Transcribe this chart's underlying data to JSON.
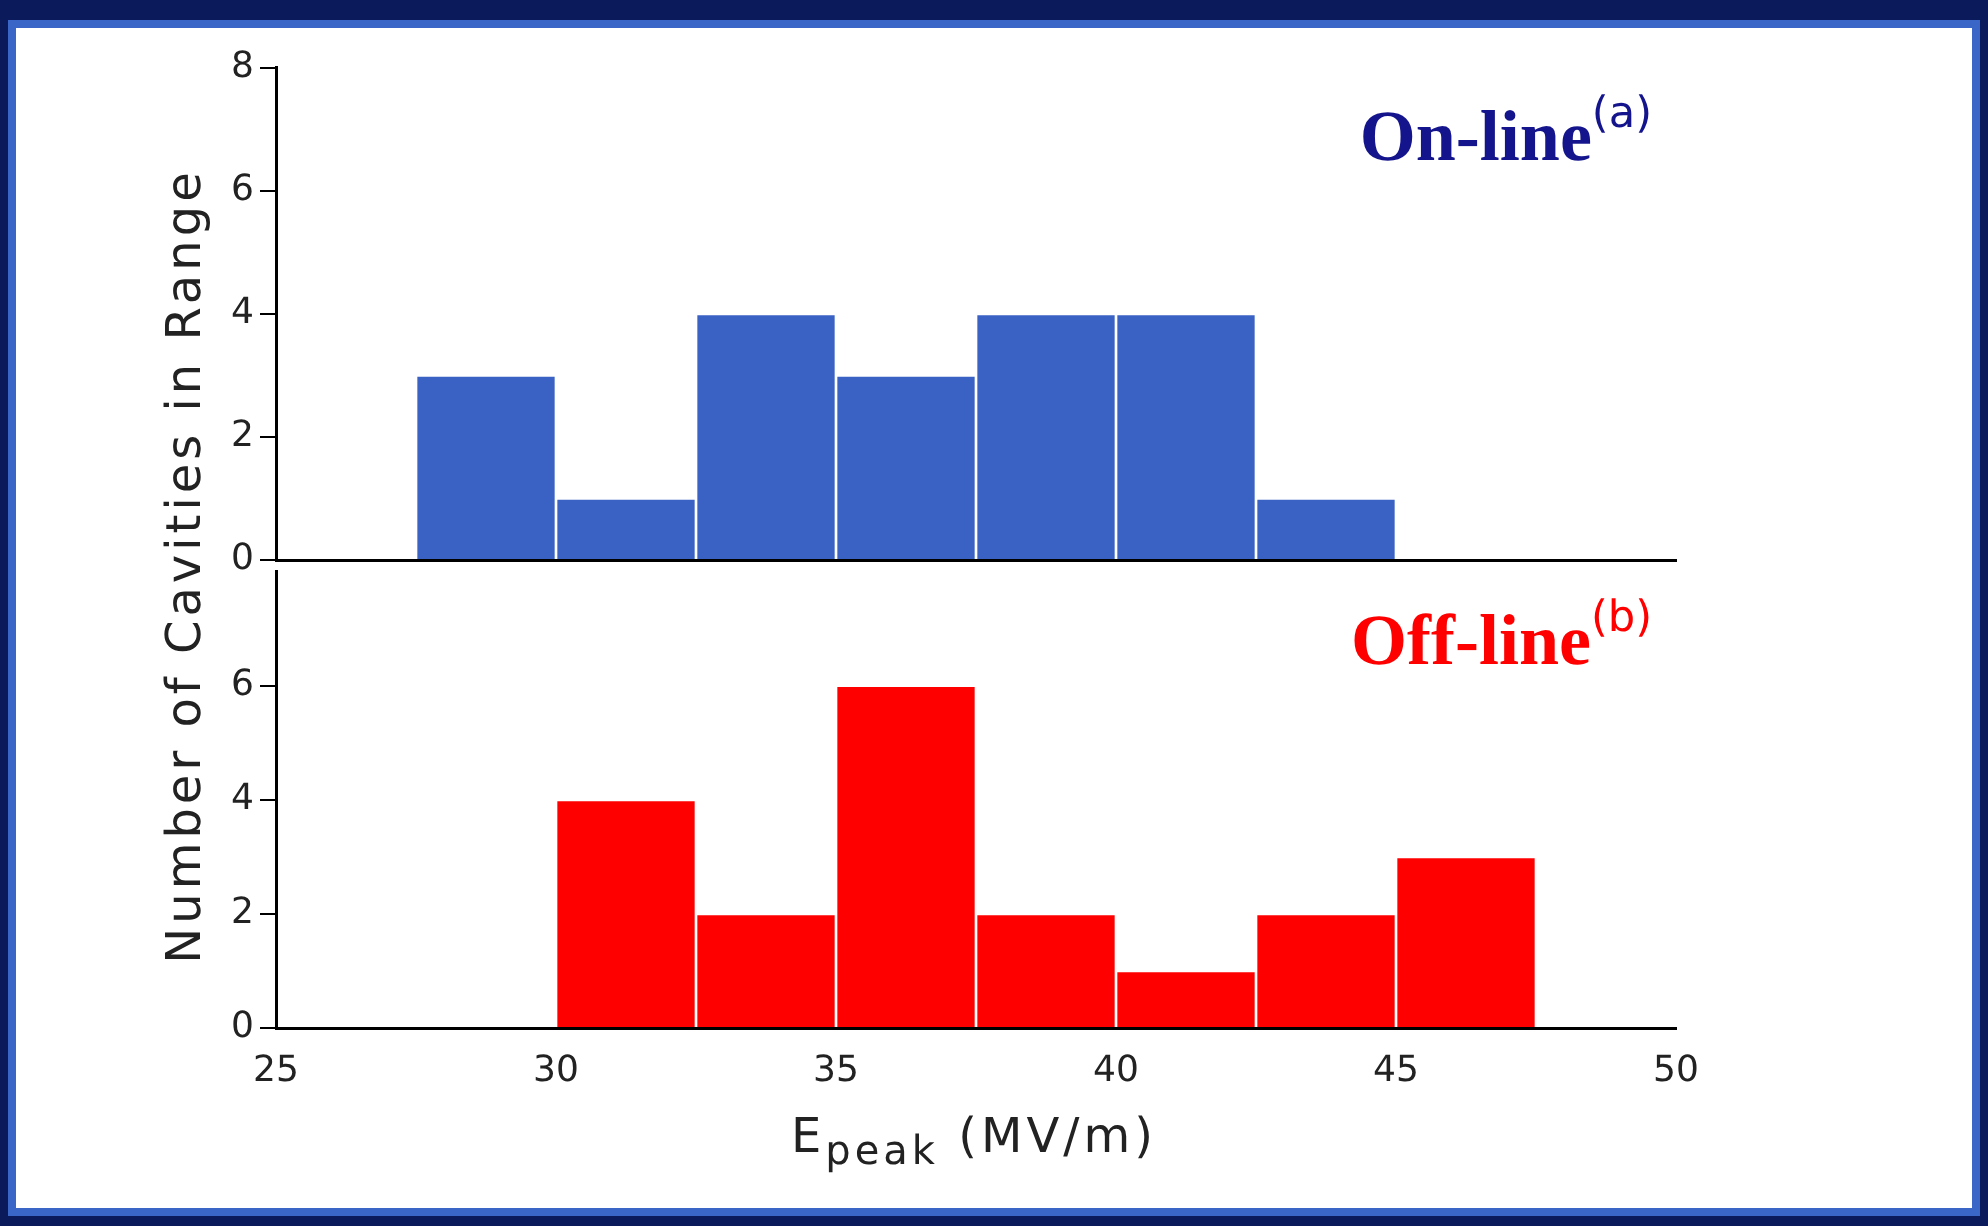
{
  "chart_data": [
    {
      "type": "histogram",
      "ylabel": "Number of Cavities in Range",
      "annotations": [
        "On-line$^{(a)}$"
      ],
      "bins": [
        27.5,
        30,
        32.5,
        35,
        37.5,
        40,
        42.5,
        45
      ],
      "values": [
        3,
        1,
        4,
        3,
        4,
        4,
        1
      ],
      "color": "#3a62c4",
      "xlim": [
        25,
        50
      ],
      "xticks": [
        25,
        30,
        35,
        40,
        45,
        50
      ],
      "ylim": [
        0,
        8
      ],
      "yticks": [
        0,
        2,
        4,
        6,
        8
      ],
      "tick_labels": "y",
      "grid": false,
      "legend": false
    },
    {
      "type": "histogram",
      "xlabel": "E$_{peak}$ (MV/m)",
      "annotations": [
        "Off-line$^{(b)}$"
      ],
      "bins": [
        30,
        32.5,
        35,
        37.5,
        40,
        42.5,
        45,
        47.5
      ],
      "values": [
        4,
        2,
        6,
        2,
        1,
        2,
        3
      ],
      "color": "#ff0000",
      "xlim": [
        25,
        50
      ],
      "xticks": [
        25,
        30,
        35,
        40,
        45,
        50
      ],
      "ylim": [
        0,
        8
      ],
      "yticks": [
        0,
        2,
        4,
        6
      ],
      "grid": false,
      "legend": false
    }
  ]
}
